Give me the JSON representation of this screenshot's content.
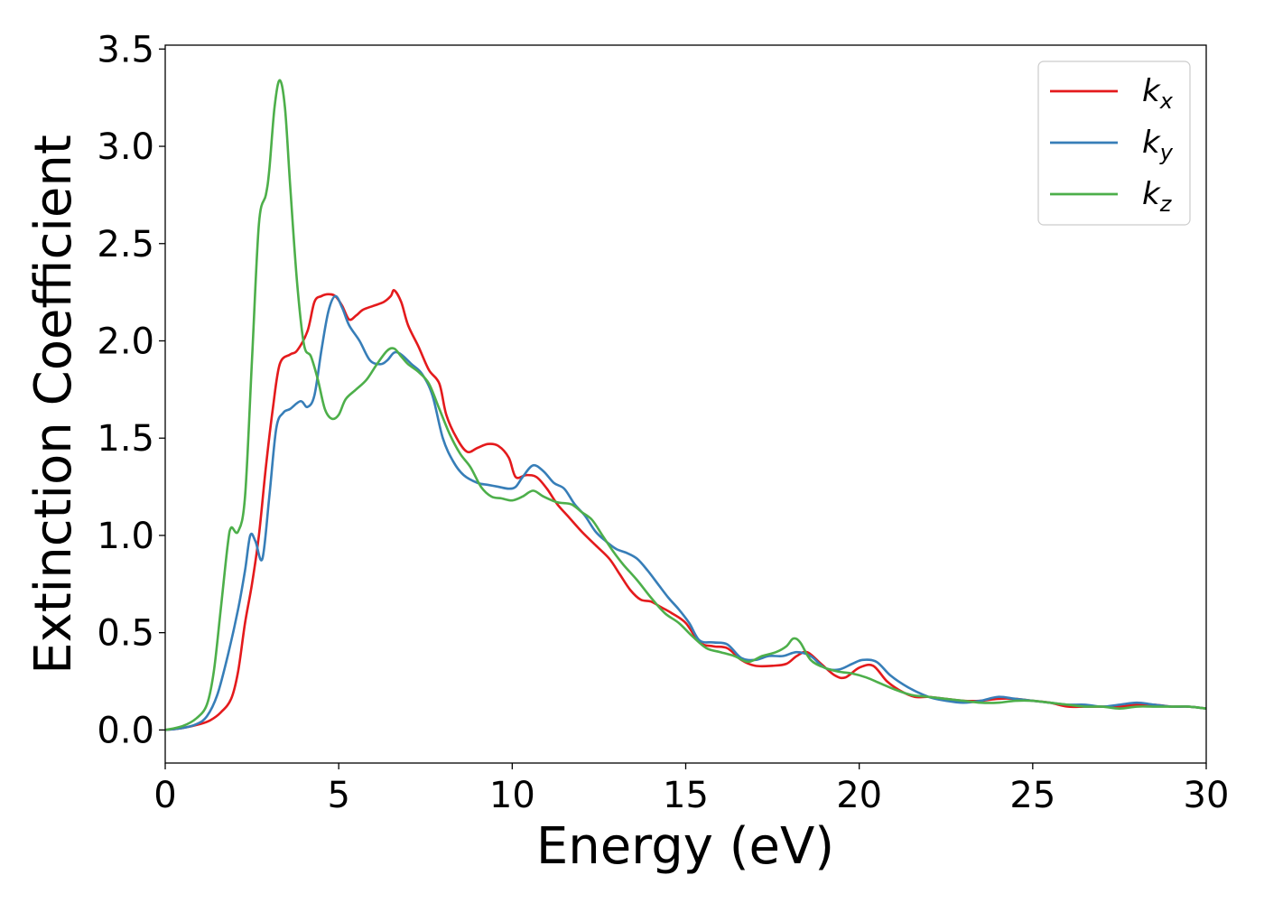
{
  "chart_data": {
    "type": "line",
    "title": "",
    "xlabel": "Energy (eV)",
    "ylabel": "Extinction Coefficient",
    "xlim": [
      0,
      30
    ],
    "ylim": [
      -0.17,
      3.52
    ],
    "xticks": [
      0,
      5,
      10,
      15,
      20,
      25,
      30
    ],
    "xtick_labels": [
      "0",
      "5",
      "10",
      "15",
      "20",
      "25",
      "30"
    ],
    "yticks": [
      0.0,
      0.5,
      1.0,
      1.5,
      2.0,
      2.5,
      3.0,
      3.5
    ],
    "ytick_labels": [
      "0.0",
      "0.5",
      "1.0",
      "1.5",
      "2.0",
      "2.5",
      "3.0",
      "3.5"
    ],
    "grid": false,
    "legend_position": "top-right",
    "series": [
      {
        "name": "kx",
        "label_base": "k",
        "label_sub": "x",
        "color": "#e41a1c",
        "x": [
          0,
          0.5,
          1.0,
          1.3,
          1.6,
          1.9,
          2.1,
          2.3,
          2.5,
          2.7,
          2.9,
          3.1,
          3.3,
          3.6,
          3.8,
          4.1,
          4.3,
          4.5,
          4.7,
          4.9,
          5.1,
          5.3,
          5.5,
          5.7,
          6.0,
          6.3,
          6.5,
          6.6,
          6.8,
          7.0,
          7.3,
          7.6,
          7.9,
          8.1,
          8.4,
          8.7,
          9.0,
          9.3,
          9.6,
          9.9,
          10.1,
          10.4,
          10.7,
          11.0,
          11.3,
          11.6,
          12.0,
          12.4,
          12.8,
          13.1,
          13.4,
          13.7,
          14.0,
          14.3,
          14.6,
          15.0,
          15.4,
          15.8,
          16.2,
          16.6,
          17.0,
          17.5,
          17.9,
          18.2,
          18.5,
          18.9,
          19.3,
          19.6,
          20.0,
          20.4,
          20.8,
          21.2,
          21.6,
          22.0,
          22.5,
          23.0,
          23.5,
          24.0,
          24.5,
          25.0,
          25.5,
          26.0,
          26.5,
          27.0,
          27.5,
          28.0,
          28.5,
          29.0,
          29.5,
          30.0
        ],
        "values": [
          0.0,
          0.01,
          0.03,
          0.05,
          0.09,
          0.16,
          0.3,
          0.55,
          0.75,
          1.0,
          1.35,
          1.65,
          1.88,
          1.93,
          1.95,
          2.05,
          2.2,
          2.23,
          2.24,
          2.23,
          2.18,
          2.11,
          2.13,
          2.16,
          2.18,
          2.2,
          2.23,
          2.26,
          2.2,
          2.08,
          1.97,
          1.85,
          1.78,
          1.62,
          1.5,
          1.43,
          1.45,
          1.47,
          1.46,
          1.4,
          1.3,
          1.31,
          1.3,
          1.24,
          1.16,
          1.1,
          1.02,
          0.95,
          0.88,
          0.8,
          0.72,
          0.67,
          0.66,
          0.63,
          0.6,
          0.55,
          0.45,
          0.43,
          0.42,
          0.36,
          0.33,
          0.33,
          0.34,
          0.38,
          0.4,
          0.34,
          0.28,
          0.27,
          0.32,
          0.33,
          0.25,
          0.2,
          0.17,
          0.17,
          0.16,
          0.15,
          0.15,
          0.16,
          0.16,
          0.15,
          0.14,
          0.12,
          0.12,
          0.12,
          0.12,
          0.13,
          0.13,
          0.12,
          0.12,
          0.11
        ]
      },
      {
        "name": "ky",
        "label_base": "k",
        "label_sub": "y",
        "color": "#377eb8",
        "x": [
          0,
          0.5,
          0.9,
          1.2,
          1.5,
          1.8,
          2.1,
          2.3,
          2.45,
          2.6,
          2.8,
          3.0,
          3.2,
          3.4,
          3.6,
          3.9,
          4.1,
          4.3,
          4.5,
          4.7,
          4.9,
          5.1,
          5.3,
          5.6,
          5.9,
          6.2,
          6.4,
          6.6,
          6.8,
          7.1,
          7.4,
          7.7,
          8.0,
          8.3,
          8.6,
          9.0,
          9.3,
          9.6,
          9.9,
          10.1,
          10.3,
          10.6,
          10.9,
          11.2,
          11.5,
          11.8,
          12.1,
          12.4,
          12.7,
          13.0,
          13.3,
          13.6,
          13.9,
          14.2,
          14.5,
          14.8,
          15.1,
          15.4,
          15.8,
          16.2,
          16.6,
          17.0,
          17.4,
          17.8,
          18.2,
          18.6,
          19.0,
          19.4,
          19.8,
          20.1,
          20.5,
          20.9,
          21.4,
          22.0,
          22.5,
          23.0,
          23.5,
          24.0,
          24.5,
          25.0,
          25.5,
          26.0,
          26.5,
          27.0,
          27.5,
          28.0,
          28.5,
          29.0,
          29.5,
          30.0
        ],
        "values": [
          0.0,
          0.01,
          0.03,
          0.07,
          0.18,
          0.38,
          0.62,
          0.82,
          1.0,
          0.97,
          0.88,
          1.2,
          1.55,
          1.63,
          1.65,
          1.69,
          1.66,
          1.72,
          1.95,
          2.15,
          2.23,
          2.17,
          2.08,
          2.0,
          1.9,
          1.88,
          1.9,
          1.94,
          1.93,
          1.88,
          1.83,
          1.72,
          1.5,
          1.38,
          1.31,
          1.27,
          1.26,
          1.25,
          1.24,
          1.25,
          1.3,
          1.36,
          1.33,
          1.27,
          1.24,
          1.16,
          1.1,
          1.02,
          0.97,
          0.93,
          0.91,
          0.88,
          0.82,
          0.75,
          0.68,
          0.62,
          0.55,
          0.46,
          0.45,
          0.44,
          0.37,
          0.36,
          0.38,
          0.38,
          0.4,
          0.38,
          0.32,
          0.31,
          0.34,
          0.36,
          0.35,
          0.28,
          0.22,
          0.17,
          0.15,
          0.14,
          0.15,
          0.17,
          0.16,
          0.15,
          0.14,
          0.13,
          0.13,
          0.12,
          0.13,
          0.14,
          0.13,
          0.12,
          0.12,
          0.11
        ]
      },
      {
        "name": "kz",
        "label_base": "k",
        "label_sub": "z",
        "color": "#4daf4a",
        "x": [
          0,
          0.5,
          0.9,
          1.2,
          1.4,
          1.6,
          1.8,
          1.9,
          2.1,
          2.3,
          2.5,
          2.7,
          2.9,
          3.0,
          3.15,
          3.3,
          3.45,
          3.6,
          3.8,
          4.0,
          4.2,
          4.4,
          4.6,
          4.8,
          5.0,
          5.2,
          5.5,
          5.8,
          6.1,
          6.4,
          6.6,
          6.8,
          7.0,
          7.3,
          7.6,
          7.9,
          8.2,
          8.5,
          8.8,
          9.1,
          9.4,
          9.7,
          10.0,
          10.3,
          10.6,
          10.9,
          11.3,
          11.7,
          12.0,
          12.3,
          12.6,
          12.9,
          13.2,
          13.6,
          14.0,
          14.4,
          14.8,
          15.2,
          15.6,
          16.0,
          16.4,
          16.8,
          17.2,
          17.6,
          17.9,
          18.1,
          18.3,
          18.6,
          19.0,
          19.4,
          19.8,
          20.2,
          20.6,
          21.0,
          21.5,
          22.0,
          22.5,
          23.0,
          23.5,
          24.0,
          24.5,
          25.0,
          25.5,
          26.0,
          26.5,
          27.0,
          27.5,
          28.0,
          28.5,
          29.0,
          29.5,
          30.0
        ],
        "values": [
          0.0,
          0.02,
          0.06,
          0.13,
          0.3,
          0.62,
          0.95,
          1.04,
          1.02,
          1.2,
          1.9,
          2.6,
          2.75,
          2.88,
          3.2,
          3.34,
          3.2,
          2.8,
          2.3,
          1.98,
          1.92,
          1.8,
          1.65,
          1.6,
          1.62,
          1.7,
          1.75,
          1.8,
          1.88,
          1.95,
          1.96,
          1.92,
          1.88,
          1.84,
          1.78,
          1.65,
          1.52,
          1.42,
          1.35,
          1.25,
          1.2,
          1.19,
          1.18,
          1.2,
          1.23,
          1.2,
          1.17,
          1.16,
          1.12,
          1.08,
          1.0,
          0.92,
          0.85,
          0.77,
          0.68,
          0.6,
          0.55,
          0.48,
          0.42,
          0.4,
          0.38,
          0.35,
          0.38,
          0.4,
          0.43,
          0.47,
          0.45,
          0.36,
          0.32,
          0.3,
          0.29,
          0.27,
          0.24,
          0.21,
          0.18,
          0.17,
          0.16,
          0.15,
          0.14,
          0.14,
          0.15,
          0.15,
          0.14,
          0.13,
          0.12,
          0.12,
          0.11,
          0.12,
          0.12,
          0.12,
          0.12,
          0.11
        ]
      }
    ]
  }
}
